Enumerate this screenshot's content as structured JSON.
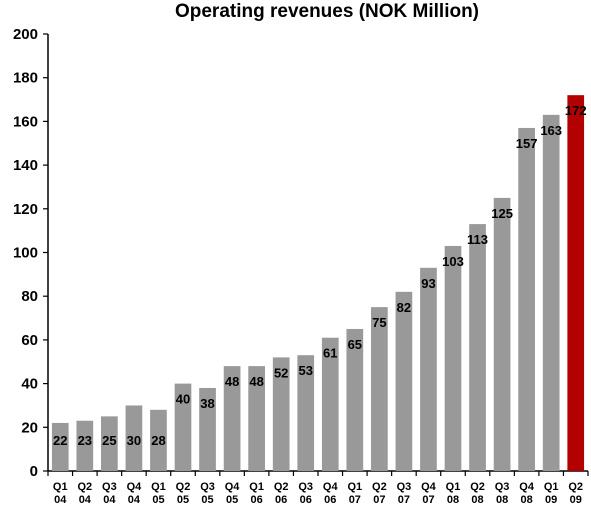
{
  "chart_data": {
    "type": "bar",
    "title": "Operating revenues (NOK Million)",
    "xlabel": "",
    "ylabel": "",
    "ylim": [
      0,
      200
    ],
    "yticks": [
      0,
      20,
      40,
      60,
      80,
      100,
      120,
      140,
      160,
      180,
      200
    ],
    "grid": false,
    "legend": "none",
    "categories": [
      [
        "Q1",
        "04"
      ],
      [
        "Q2",
        "04"
      ],
      [
        "Q3",
        "04"
      ],
      [
        "Q4",
        "04"
      ],
      [
        "Q1",
        "05"
      ],
      [
        "Q2",
        "05"
      ],
      [
        "Q3",
        "05"
      ],
      [
        "Q4",
        "05"
      ],
      [
        "Q1",
        "06"
      ],
      [
        "Q2",
        "06"
      ],
      [
        "Q3",
        "06"
      ],
      [
        "Q4",
        "06"
      ],
      [
        "Q1",
        "07"
      ],
      [
        "Q2",
        "07"
      ],
      [
        "Q3",
        "07"
      ],
      [
        "Q4",
        "07"
      ],
      [
        "Q1",
        "08"
      ],
      [
        "Q2",
        "08"
      ],
      [
        "Q3",
        "08"
      ],
      [
        "Q4",
        "08"
      ],
      [
        "Q1",
        "09"
      ],
      [
        "Q2",
        "09"
      ]
    ],
    "values": [
      22,
      23,
      25,
      30,
      28,
      40,
      38,
      48,
      48,
      52,
      53,
      61,
      65,
      75,
      82,
      93,
      103,
      113,
      125,
      157,
      163,
      172
    ],
    "colors": {
      "bar": "#999999",
      "highlight": "#b30000",
      "axis": "#000000"
    },
    "highlight_index": 21
  }
}
